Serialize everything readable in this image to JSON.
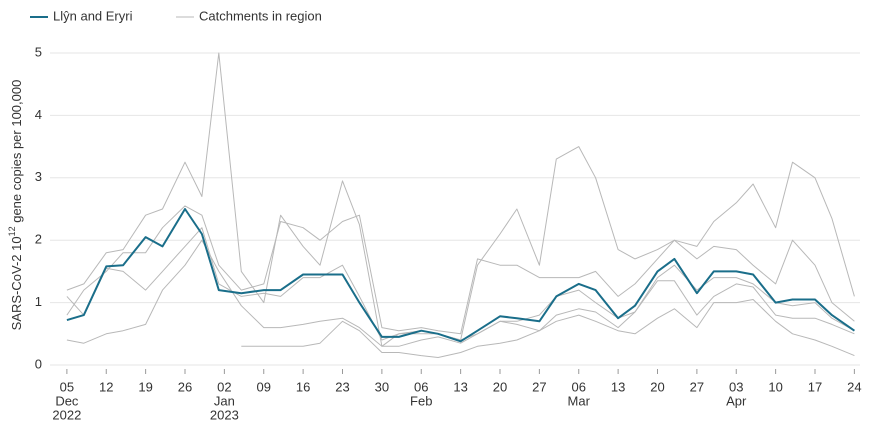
{
  "chart_data": {
    "type": "line",
    "ylabel": [
      "SARS-CoV-2 10",
      "12",
      " gene copies per 100,000"
    ],
    "x": [
      "2022-12-05",
      "2022-12-08",
      "2022-12-12",
      "2022-12-15",
      "2022-12-19",
      "2022-12-22",
      "2022-12-26",
      "2022-12-29",
      "2023-01-01",
      "2023-01-05",
      "2023-01-09",
      "2023-01-12",
      "2023-01-16",
      "2023-01-19",
      "2023-01-23",
      "2023-01-26",
      "2023-01-30",
      "2023-02-02",
      "2023-02-06",
      "2023-02-09",
      "2023-02-13",
      "2023-02-16",
      "2023-02-20",
      "2023-02-23",
      "2023-02-27",
      "2023-03-02",
      "2023-03-06",
      "2023-03-09",
      "2023-03-13",
      "2023-03-16",
      "2023-03-20",
      "2023-03-23",
      "2023-03-27",
      "2023-03-30",
      "2023-04-03",
      "2023-04-06",
      "2023-04-10",
      "2023-04-13",
      "2023-04-17",
      "2023-04-20",
      "2023-04-24"
    ],
    "series": [
      {
        "name": "Llŷn and Eryri",
        "color": "#1a6e8a",
        "values": [
          0.72,
          0.8,
          1.58,
          1.6,
          2.05,
          1.9,
          2.5,
          2.1,
          1.2,
          1.15,
          1.2,
          1.2,
          1.45,
          1.45,
          1.45,
          1.0,
          0.45,
          0.45,
          0.55,
          0.5,
          0.38,
          0.55,
          0.78,
          0.75,
          0.7,
          1.1,
          1.3,
          1.2,
          0.75,
          0.95,
          1.5,
          1.7,
          1.15,
          1.5,
          1.5,
          1.45,
          1.0,
          1.05,
          1.05,
          0.8,
          0.55
        ]
      }
    ],
    "catchments": {
      "name": "Catchments in region",
      "color": "#b8b8b8",
      "lines": [
        [
          1.2,
          1.3,
          1.8,
          1.85,
          2.4,
          2.5,
          3.25,
          2.7,
          5.0,
          1.5,
          1.0,
          2.4,
          1.9,
          1.6,
          2.95,
          2.25,
          0.3,
          0.5,
          0.5,
          0.5,
          0.4,
          1.6,
          2.1,
          2.5,
          1.6,
          3.3,
          3.5,
          3.0,
          1.85,
          1.7,
          1.85,
          2.0,
          1.9,
          2.3,
          2.6,
          2.9,
          2.2,
          3.25,
          3.0,
          2.35,
          1.1
        ],
        [
          0.8,
          1.2,
          1.5,
          1.8,
          1.8,
          2.2,
          2.55,
          2.4,
          1.6,
          1.2,
          1.3,
          2.3,
          2.2,
          2.0,
          2.3,
          2.4,
          0.6,
          0.55,
          0.6,
          0.55,
          0.5,
          1.7,
          1.6,
          1.6,
          1.4,
          1.4,
          1.4,
          1.5,
          1.1,
          1.3,
          1.7,
          2.0,
          1.7,
          1.9,
          1.85,
          1.6,
          1.3,
          2.0,
          1.6,
          1.0,
          0.7
        ],
        [
          0.4,
          0.35,
          0.5,
          0.55,
          0.65,
          1.2,
          1.6,
          2.0,
          1.5,
          0.95,
          0.6,
          0.6,
          0.65,
          0.7,
          0.75,
          0.6,
          0.3,
          0.3,
          0.4,
          0.45,
          0.35,
          0.5,
          0.7,
          0.65,
          0.55,
          0.8,
          0.9,
          0.85,
          0.6,
          0.85,
          1.35,
          1.35,
          0.8,
          1.1,
          1.3,
          1.25,
          0.8,
          0.75,
          0.75,
          0.65,
          0.5
        ],
        [
          null,
          null,
          null,
          null,
          null,
          null,
          null,
          null,
          null,
          0.3,
          0.3,
          0.3,
          0.3,
          0.35,
          0.7,
          0.55,
          0.2,
          0.2,
          0.15,
          0.12,
          0.2,
          0.3,
          0.35,
          0.4,
          0.55,
          0.7,
          0.8,
          0.7,
          0.55,
          0.5,
          0.75,
          0.9,
          0.6,
          1.0,
          1.0,
          1.05,
          0.7,
          0.5,
          0.4,
          0.3,
          0.15
        ],
        [
          1.1,
          0.8,
          1.55,
          1.5,
          1.2,
          1.5,
          1.9,
          2.2,
          1.3,
          1.1,
          1.15,
          1.1,
          1.4,
          1.4,
          1.6,
          1.1,
          0.4,
          0.5,
          0.55,
          0.5,
          0.4,
          0.5,
          0.7,
          0.7,
          0.8,
          1.1,
          1.2,
          1.0,
          0.75,
          0.85,
          1.4,
          1.6,
          1.2,
          1.4,
          1.4,
          1.3,
          1.0,
          0.95,
          1.0,
          0.75,
          0.55
        ]
      ]
    },
    "xlim": [
      "2022-12-02",
      "2023-04-25"
    ],
    "xticks": [
      {
        "value": "2022-12-05",
        "label": [
          "05",
          "Dec",
          "2022"
        ]
      },
      {
        "value": "2022-12-12",
        "label": [
          "12"
        ]
      },
      {
        "value": "2022-12-19",
        "label": [
          "19"
        ]
      },
      {
        "value": "2022-12-26",
        "label": [
          "26"
        ]
      },
      {
        "value": "2023-01-02",
        "label": [
          "02",
          "Jan",
          "2023"
        ]
      },
      {
        "value": "2023-01-09",
        "label": [
          "09"
        ]
      },
      {
        "value": "2023-01-16",
        "label": [
          "16"
        ]
      },
      {
        "value": "2023-01-23",
        "label": [
          "23"
        ]
      },
      {
        "value": "2023-01-30",
        "label": [
          "30"
        ]
      },
      {
        "value": "2023-02-06",
        "label": [
          "06",
          "Feb"
        ]
      },
      {
        "value": "2023-02-13",
        "label": [
          "13"
        ]
      },
      {
        "value": "2023-02-20",
        "label": [
          "20"
        ]
      },
      {
        "value": "2023-02-27",
        "label": [
          "27"
        ]
      },
      {
        "value": "2023-03-06",
        "label": [
          "06",
          "Mar"
        ]
      },
      {
        "value": "2023-03-13",
        "label": [
          "13"
        ]
      },
      {
        "value": "2023-03-20",
        "label": [
          "20"
        ]
      },
      {
        "value": "2023-03-27",
        "label": [
          "27"
        ]
      },
      {
        "value": "2023-04-03",
        "label": [
          "03",
          "Apr"
        ]
      },
      {
        "value": "2023-04-10",
        "label": [
          "10"
        ]
      },
      {
        "value": "2023-04-17",
        "label": [
          "17"
        ]
      },
      {
        "value": "2023-04-24",
        "label": [
          "24"
        ]
      }
    ],
    "ylim": [
      0,
      5
    ],
    "yticks": [
      0,
      1,
      2,
      3,
      4,
      5
    ],
    "grid": true
  }
}
